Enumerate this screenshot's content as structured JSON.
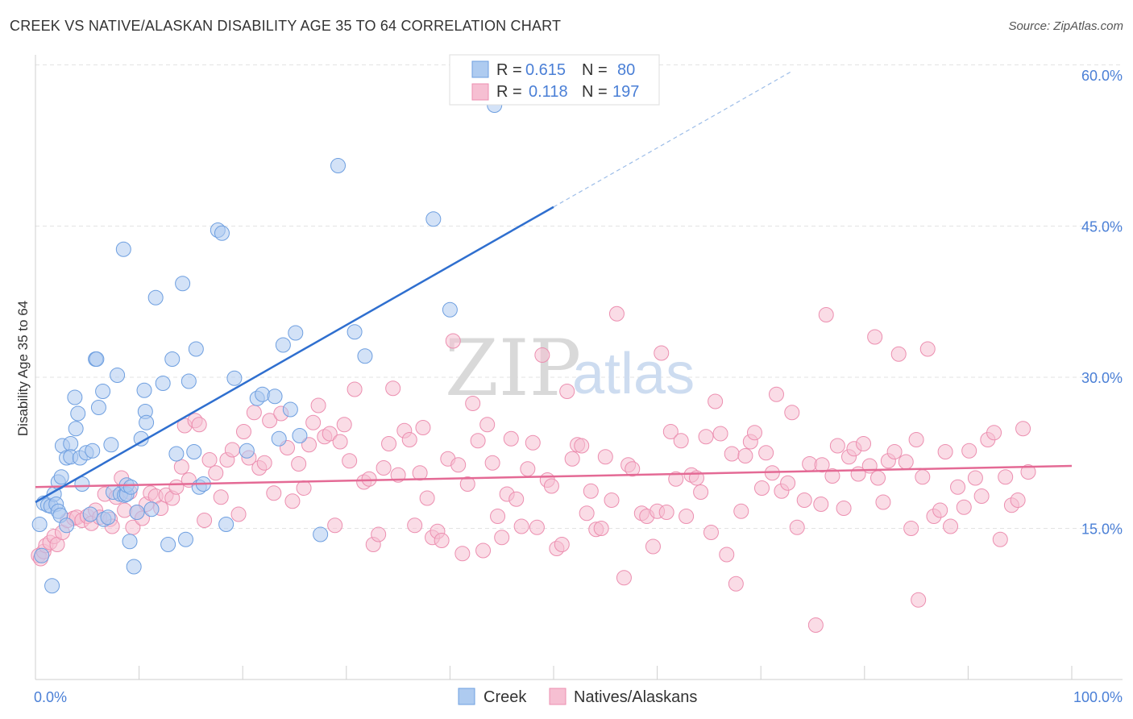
{
  "header": {
    "title": "CREEK VS NATIVE/ALASKAN DISABILITY AGE 35 TO 64 CORRELATION CHART",
    "source": "Source: ZipAtlas.com"
  },
  "watermark": {
    "zip": "ZIP",
    "atlas": "atlas"
  },
  "colors": {
    "creek_fill": "#aecbf0",
    "creek_stroke": "#6e9fe0",
    "creek_line": "#2f6fcf",
    "native_fill": "#f6bfd2",
    "native_stroke": "#ec8fb0",
    "native_line": "#e46a95",
    "tick_label": "#4a7fd6",
    "grid": "#e3e3e3"
  },
  "legend": {
    "rows": [
      {
        "r_label": "R =",
        "r_value": "0.615",
        "n_label": "N =",
        "n_value": "80"
      },
      {
        "r_label": "R =",
        "r_value": "0.118",
        "n_label": "N =",
        "n_value": "197"
      }
    ]
  },
  "bottom_legend": {
    "items": [
      "Creek",
      "Natives/Alaskans"
    ]
  },
  "chart_data": {
    "type": "scatter",
    "title": "CREEK VS NATIVE/ALASKAN DISABILITY AGE 35 TO 64 CORRELATION CHART",
    "xlabel": "",
    "ylabel": "Disability Age 35 to 64",
    "xlim": [
      0,
      100
    ],
    "ylim": [
      0,
      62
    ],
    "x_tick_labels": [
      {
        "value": 0,
        "label": "0.0%"
      },
      {
        "value": 100,
        "label": "100.0%"
      }
    ],
    "y_ticks": [
      {
        "value": 15,
        "label": "15.0%"
      },
      {
        "value": 30,
        "label": "30.0%"
      },
      {
        "value": 45,
        "label": "45.0%"
      },
      {
        "value": 60,
        "label": "60.0%"
      }
    ],
    "grid": true,
    "legend_position": "top-center",
    "series": [
      {
        "name": "Creek",
        "trend": {
          "x0": 0,
          "y0": 17.6,
          "x1": 50,
          "y1": 46.9,
          "dash_to_x": 73
        },
        "points": [
          [
            0.4,
            15.4
          ],
          [
            0.6,
            12.3
          ],
          [
            0.8,
            17.5
          ],
          [
            1.2,
            17.3
          ],
          [
            1.5,
            17.2
          ],
          [
            1.6,
            9.3
          ],
          [
            1.8,
            18.4
          ],
          [
            2.0,
            17.4
          ],
          [
            2.2,
            16.7
          ],
          [
            2.4,
            16.3
          ],
          [
            2.2,
            19.6
          ],
          [
            2.5,
            20.1
          ],
          [
            2.6,
            23.2
          ],
          [
            3.0,
            15.3
          ],
          [
            3.0,
            22.0
          ],
          [
            3.4,
            23.4
          ],
          [
            3.4,
            22.1
          ],
          [
            3.8,
            28.0
          ],
          [
            3.9,
            24.9
          ],
          [
            4.1,
            26.4
          ],
          [
            4.3,
            22.0
          ],
          [
            4.5,
            19.4
          ],
          [
            4.9,
            22.5
          ],
          [
            5.3,
            16.4
          ],
          [
            5.5,
            22.7
          ],
          [
            5.8,
            31.8
          ],
          [
            5.9,
            31.8
          ],
          [
            6.1,
            27.0
          ],
          [
            6.5,
            28.6
          ],
          [
            6.6,
            15.9
          ],
          [
            7.0,
            16.1
          ],
          [
            7.3,
            23.3
          ],
          [
            7.5,
            18.6
          ],
          [
            7.9,
            30.2
          ],
          [
            8.2,
            18.4
          ],
          [
            8.5,
            42.7
          ],
          [
            8.6,
            18.3
          ],
          [
            8.8,
            18.4
          ],
          [
            8.8,
            19.3
          ],
          [
            9.1,
            13.7
          ],
          [
            9.2,
            19.1
          ],
          [
            9.5,
            11.2
          ],
          [
            9.8,
            16.6
          ],
          [
            10.2,
            23.9
          ],
          [
            10.5,
            28.7
          ],
          [
            10.6,
            26.6
          ],
          [
            10.7,
            25.5
          ],
          [
            11.2,
            16.9
          ],
          [
            11.6,
            37.9
          ],
          [
            12.3,
            29.4
          ],
          [
            12.8,
            13.4
          ],
          [
            13.2,
            31.8
          ],
          [
            13.6,
            22.4
          ],
          [
            14.2,
            39.3
          ],
          [
            14.5,
            13.9
          ],
          [
            14.8,
            29.6
          ],
          [
            15.3,
            22.6
          ],
          [
            15.5,
            32.8
          ],
          [
            15.8,
            19.1
          ],
          [
            16.2,
            19.4
          ],
          [
            17.6,
            44.6
          ],
          [
            18.0,
            44.3
          ],
          [
            18.4,
            15.4
          ],
          [
            19.2,
            29.9
          ],
          [
            20.4,
            22.7
          ],
          [
            21.4,
            27.9
          ],
          [
            21.9,
            28.3
          ],
          [
            23.1,
            28.1
          ],
          [
            23.5,
            23.9
          ],
          [
            23.9,
            33.2
          ],
          [
            24.6,
            26.8
          ],
          [
            25.1,
            34.4
          ],
          [
            25.5,
            24.2
          ],
          [
            27.5,
            14.4
          ],
          [
            29.2,
            51.0
          ],
          [
            30.8,
            34.5
          ],
          [
            31.8,
            32.1
          ],
          [
            38.4,
            45.7
          ],
          [
            40.0,
            36.7
          ],
          [
            44.3,
            57.0
          ]
        ]
      },
      {
        "name": "Natives/Alaskans",
        "trend": {
          "x0": 0,
          "y0": 19.1,
          "x1": 100,
          "y1": 21.2
        },
        "points": [
          [
            0.3,
            12.3
          ],
          [
            0.5,
            12.0
          ],
          [
            0.8,
            12.7
          ],
          [
            1.0,
            13.3
          ],
          [
            1.4,
            13.6
          ],
          [
            1.8,
            14.2
          ],
          [
            2.1,
            13.4
          ],
          [
            2.6,
            14.6
          ],
          [
            3.1,
            15.8
          ],
          [
            3.7,
            16.0
          ],
          [
            4.0,
            16.1
          ],
          [
            4.5,
            15.8
          ],
          [
            5.0,
            16.2
          ],
          [
            5.4,
            15.5
          ],
          [
            5.8,
            16.8
          ],
          [
            6.2,
            16.1
          ],
          [
            6.7,
            18.4
          ],
          [
            7.2,
            15.9
          ],
          [
            7.4,
            15.2
          ],
          [
            7.8,
            18.1
          ],
          [
            8.3,
            20.0
          ],
          [
            8.6,
            16.8
          ],
          [
            9.1,
            18.6
          ],
          [
            9.4,
            15.1
          ],
          [
            9.8,
            16.6
          ],
          [
            10.3,
            16.0
          ],
          [
            10.7,
            17.4
          ],
          [
            11.1,
            18.5
          ],
          [
            11.6,
            18.2
          ],
          [
            12.1,
            17.0
          ],
          [
            12.6,
            18.3
          ],
          [
            13.2,
            18.0
          ],
          [
            13.6,
            19.1
          ],
          [
            14.1,
            21.1
          ],
          [
            14.4,
            25.2
          ],
          [
            14.8,
            19.8
          ],
          [
            15.4,
            25.7
          ],
          [
            15.8,
            25.3
          ],
          [
            16.3,
            15.8
          ],
          [
            16.8,
            21.8
          ],
          [
            17.4,
            20.5
          ],
          [
            17.9,
            18.1
          ],
          [
            18.5,
            21.8
          ],
          [
            19.0,
            22.8
          ],
          [
            19.6,
            16.4
          ],
          [
            20.1,
            24.6
          ],
          [
            20.6,
            22.0
          ],
          [
            21.1,
            26.5
          ],
          [
            21.6,
            21.0
          ],
          [
            22.1,
            21.5
          ],
          [
            22.6,
            25.7
          ],
          [
            23.0,
            18.5
          ],
          [
            23.7,
            26.4
          ],
          [
            24.3,
            23.0
          ],
          [
            24.8,
            17.7
          ],
          [
            25.4,
            21.4
          ],
          [
            25.9,
            19.0
          ],
          [
            26.4,
            23.3
          ],
          [
            26.8,
            25.5
          ],
          [
            27.3,
            27.2
          ],
          [
            27.9,
            24.1
          ],
          [
            28.4,
            24.4
          ],
          [
            28.9,
            15.3
          ],
          [
            29.4,
            23.6
          ],
          [
            29.8,
            25.3
          ],
          [
            30.3,
            21.7
          ],
          [
            30.8,
            28.8
          ],
          [
            31.7,
            19.6
          ],
          [
            32.2,
            19.9
          ],
          [
            32.6,
            13.4
          ],
          [
            33.1,
            14.4
          ],
          [
            33.6,
            21.0
          ],
          [
            34.1,
            23.4
          ],
          [
            34.5,
            28.9
          ],
          [
            35.0,
            20.3
          ],
          [
            35.6,
            24.7
          ],
          [
            36.1,
            23.8
          ],
          [
            36.6,
            15.3
          ],
          [
            37.1,
            20.5
          ],
          [
            37.4,
            25.0
          ],
          [
            37.8,
            18.0
          ],
          [
            38.3,
            14.1
          ],
          [
            38.8,
            14.7
          ],
          [
            39.2,
            13.8
          ],
          [
            39.8,
            21.9
          ],
          [
            40.3,
            33.6
          ],
          [
            40.8,
            21.3
          ],
          [
            41.2,
            12.5
          ],
          [
            41.7,
            19.4
          ],
          [
            42.2,
            27.4
          ],
          [
            42.7,
            23.7
          ],
          [
            43.2,
            12.8
          ],
          [
            43.6,
            25.3
          ],
          [
            44.1,
            21.5
          ],
          [
            44.6,
            16.2
          ],
          [
            45.0,
            14.1
          ],
          [
            45.5,
            18.4
          ],
          [
            45.9,
            23.9
          ],
          [
            46.4,
            17.9
          ],
          [
            46.9,
            15.2
          ],
          [
            47.5,
            20.9
          ],
          [
            48.0,
            23.5
          ],
          [
            48.4,
            15.1
          ],
          [
            48.9,
            32.2
          ],
          [
            49.4,
            19.8
          ],
          [
            49.8,
            19.2
          ],
          [
            50.3,
            13.0
          ],
          [
            50.8,
            13.4
          ],
          [
            51.3,
            28.6
          ],
          [
            51.8,
            21.9
          ],
          [
            52.3,
            23.3
          ],
          [
            52.7,
            23.2
          ],
          [
            53.2,
            16.5
          ],
          [
            53.6,
            18.7
          ],
          [
            54.1,
            14.9
          ],
          [
            54.6,
            15.0
          ],
          [
            55.0,
            22.1
          ],
          [
            55.6,
            17.8
          ],
          [
            56.1,
            36.3
          ],
          [
            56.8,
            10.1
          ],
          [
            57.2,
            21.3
          ],
          [
            57.6,
            20.9
          ],
          [
            58.5,
            16.5
          ],
          [
            59.0,
            16.2
          ],
          [
            59.6,
            13.2
          ],
          [
            60.0,
            16.7
          ],
          [
            60.4,
            32.4
          ],
          [
            60.9,
            16.6
          ],
          [
            61.3,
            24.6
          ],
          [
            61.8,
            19.9
          ],
          [
            62.3,
            23.7
          ],
          [
            62.8,
            16.2
          ],
          [
            63.3,
            20.3
          ],
          [
            63.8,
            20.0
          ],
          [
            64.2,
            18.6
          ],
          [
            64.7,
            24.1
          ],
          [
            65.2,
            14.6
          ],
          [
            65.6,
            27.6
          ],
          [
            66.1,
            24.4
          ],
          [
            66.7,
            12.4
          ],
          [
            67.2,
            22.4
          ],
          [
            67.6,
            9.5
          ],
          [
            68.1,
            16.7
          ],
          [
            68.5,
            22.2
          ],
          [
            69.0,
            23.6
          ],
          [
            69.4,
            24.5
          ],
          [
            70.1,
            19.0
          ],
          [
            70.5,
            22.5
          ],
          [
            71.1,
            20.5
          ],
          [
            71.5,
            28.3
          ],
          [
            72.0,
            18.7
          ],
          [
            72.6,
            19.5
          ],
          [
            73.0,
            26.5
          ],
          [
            73.5,
            15.1
          ],
          [
            74.2,
            17.8
          ],
          [
            74.7,
            21.4
          ],
          [
            75.3,
            5.4
          ],
          [
            75.8,
            17.4
          ],
          [
            76.3,
            36.2
          ],
          [
            76.9,
            20.2
          ],
          [
            77.4,
            23.2
          ],
          [
            78.0,
            17.0
          ],
          [
            78.5,
            22.1
          ],
          [
            79.0,
            22.9
          ],
          [
            79.4,
            20.4
          ],
          [
            79.9,
            23.4
          ],
          [
            80.5,
            21.2
          ],
          [
            81.0,
            34.0
          ],
          [
            81.3,
            20.0
          ],
          [
            81.8,
            17.6
          ],
          [
            82.3,
            21.7
          ],
          [
            82.9,
            22.6
          ],
          [
            83.3,
            32.3
          ],
          [
            84.0,
            21.6
          ],
          [
            84.5,
            15.0
          ],
          [
            85.0,
            23.8
          ],
          [
            85.6,
            20.1
          ],
          [
            86.1,
            32.8
          ],
          [
            86.7,
            16.2
          ],
          [
            87.3,
            16.8
          ],
          [
            87.8,
            22.6
          ],
          [
            88.3,
            15.2
          ],
          [
            89.0,
            19.1
          ],
          [
            89.6,
            17.1
          ],
          [
            90.1,
            22.7
          ],
          [
            90.7,
            20.0
          ],
          [
            91.3,
            18.2
          ],
          [
            91.9,
            23.8
          ],
          [
            92.5,
            24.5
          ],
          [
            93.1,
            13.9
          ],
          [
            93.6,
            20.1
          ],
          [
            94.2,
            17.3
          ],
          [
            94.8,
            17.8
          ],
          [
            95.3,
            24.9
          ],
          [
            95.8,
            20.6
          ],
          [
            85.2,
            7.9
          ],
          [
            75.9,
            21.3
          ]
        ]
      }
    ]
  }
}
